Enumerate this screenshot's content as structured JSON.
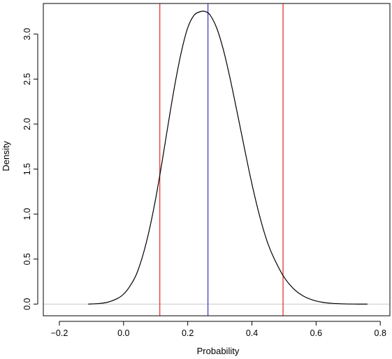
{
  "chart_data": {
    "type": "line",
    "title": "",
    "xlabel": "Probability",
    "ylabel": "Density",
    "xlim": [
      -0.25,
      0.83
    ],
    "ylim": [
      -0.13,
      3.34
    ],
    "x_ticks": [
      -0.2,
      0.0,
      0.2,
      0.4,
      0.6,
      0.8
    ],
    "x_tick_labels": [
      "-0.2",
      "0.0",
      "0.2",
      "0.4",
      "0.6",
      "0.8"
    ],
    "y_ticks": [
      0.0,
      0.5,
      1.0,
      1.5,
      2.0,
      2.5,
      3.0
    ],
    "y_tick_labels": [
      "0.0",
      "0.5",
      "1.0",
      "1.5",
      "2.0",
      "2.5",
      "3.0"
    ],
    "grid": false,
    "legend": "none",
    "series": [
      {
        "color": "#000000",
        "x": [
          -0.11,
          -0.08,
          -0.05,
          -0.02,
          0.0,
          0.02,
          0.04,
          0.06,
          0.08,
          0.1,
          0.12,
          0.14,
          0.16,
          0.18,
          0.2,
          0.22,
          0.24,
          0.255,
          0.27,
          0.29,
          0.31,
          0.33,
          0.35,
          0.37,
          0.39,
          0.41,
          0.43,
          0.45,
          0.47,
          0.5,
          0.53,
          0.56,
          0.59,
          0.62,
          0.65,
          0.69,
          0.73,
          0.76
        ],
        "y": [
          0.0,
          0.005,
          0.02,
          0.06,
          0.11,
          0.2,
          0.33,
          0.54,
          0.82,
          1.17,
          1.58,
          2.02,
          2.44,
          2.8,
          3.07,
          3.21,
          3.25,
          3.25,
          3.21,
          3.07,
          2.84,
          2.54,
          2.2,
          1.85,
          1.5,
          1.18,
          0.9,
          0.67,
          0.5,
          0.3,
          0.17,
          0.09,
          0.045,
          0.02,
          0.008,
          0.002,
          0.0,
          0.0
        ]
      }
    ],
    "reference_lines": {
      "baseline": {
        "y": 0.0,
        "color": "#c8c8c8"
      },
      "vertical": [
        {
          "x": 0.113,
          "color": "#e8221f"
        },
        {
          "x": 0.263,
          "color": "#2f2fd0"
        },
        {
          "x": 0.497,
          "color": "#e8221f"
        }
      ]
    }
  }
}
